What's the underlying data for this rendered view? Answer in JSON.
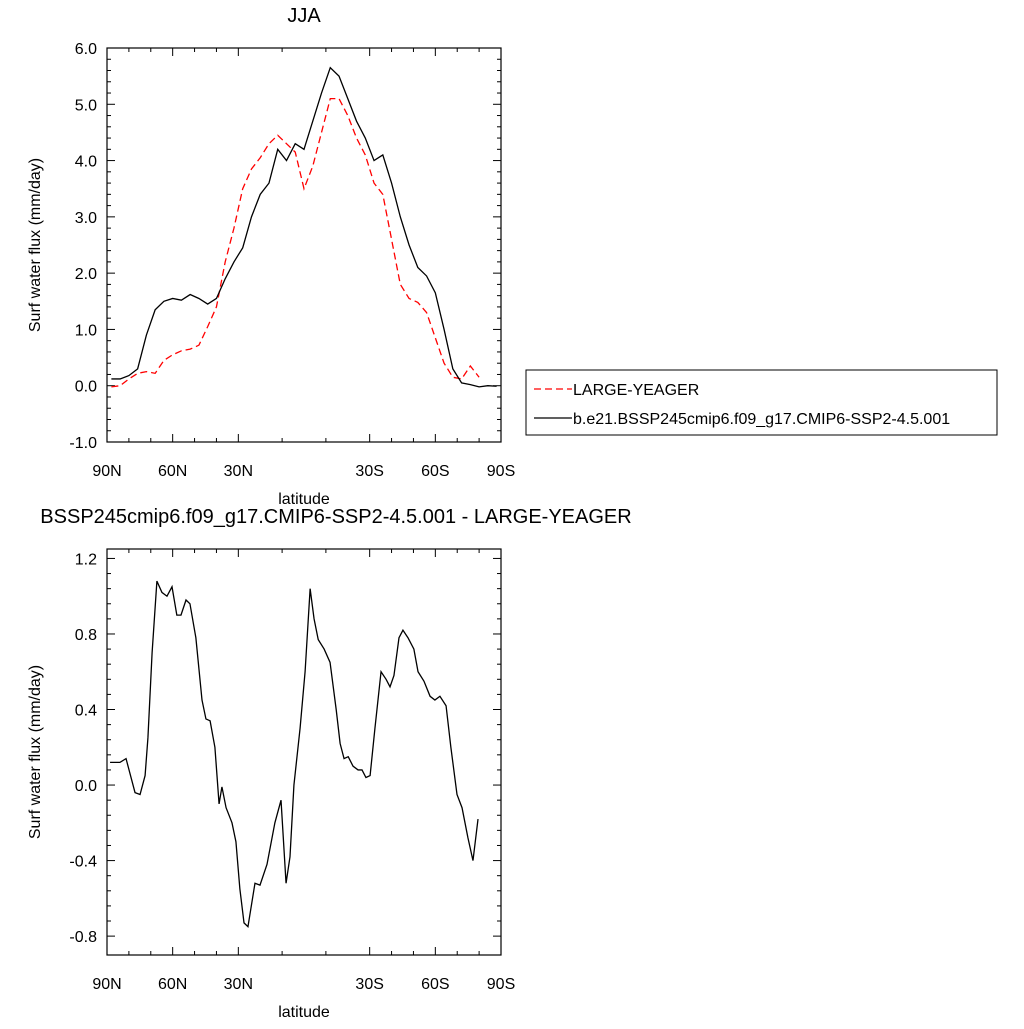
{
  "chart_data": [
    {
      "type": "line",
      "title": "JJA",
      "xlabel": "latitude",
      "ylabel": "Surf water flux (mm/day)",
      "x": [
        88,
        84,
        80,
        76,
        72,
        68,
        64,
        60,
        56,
        52,
        48,
        44,
        40,
        36,
        32,
        28,
        24,
        20,
        16,
        12,
        8,
        4,
        0,
        -4,
        -8,
        -12,
        -16,
        -20,
        -24,
        -28,
        -32,
        -36,
        -40,
        -44,
        -48,
        -52,
        -56,
        -60,
        -64,
        -68,
        -72,
        -76,
        -80,
        -84,
        -88
      ],
      "series": [
        {
          "name": "LARGE-YEAGER",
          "color": "#ff0000",
          "line_style": "dashed",
          "values": [
            -0.02,
            0.0,
            0.12,
            0.22,
            0.25,
            0.22,
            0.45,
            0.55,
            0.62,
            0.65,
            0.72,
            1.05,
            1.4,
            2.2,
            2.8,
            3.5,
            3.85,
            4.05,
            4.3,
            4.45,
            4.3,
            4.15,
            3.5,
            3.9,
            4.5,
            5.1,
            5.1,
            4.8,
            4.4,
            4.1,
            3.6,
            3.4,
            2.6,
            1.8,
            1.55,
            1.48,
            1.3,
            0.85,
            0.4,
            0.15,
            0.12,
            0.35,
            0.15,
            null,
            null
          ]
        },
        {
          "name": "b.e21.BSSP245cmip6.f09_g17.CMIP6-SSP2-4.5.001",
          "color": "#000000",
          "line_style": "solid",
          "values": [
            0.12,
            0.12,
            0.18,
            0.3,
            0.9,
            1.35,
            1.5,
            1.55,
            1.52,
            1.62,
            1.55,
            1.45,
            1.55,
            1.9,
            2.2,
            2.45,
            3.0,
            3.4,
            3.6,
            4.2,
            4.0,
            4.3,
            4.2,
            4.7,
            5.2,
            5.65,
            5.5,
            5.1,
            4.7,
            4.4,
            4.0,
            4.1,
            3.6,
            3.0,
            2.5,
            2.1,
            1.95,
            1.65,
            1.0,
            0.3,
            0.05,
            0.02,
            -0.02,
            0.0,
            -0.01
          ]
        }
      ],
      "xlim": [
        90,
        -90
      ],
      "xticks": [
        {
          "value": 90,
          "label": "90N"
        },
        {
          "value": 60,
          "label": "60N"
        },
        {
          "value": 30,
          "label": "30N"
        },
        {
          "value": -30,
          "label": "30S"
        },
        {
          "value": -60,
          "label": "60S"
        },
        {
          "value": -90,
          "label": "90S"
        }
      ],
      "ylim": [
        -1,
        6
      ],
      "yticks": [
        {
          "value": -1,
          "label": "-1.0"
        },
        {
          "value": 0,
          "label": "0.0"
        },
        {
          "value": 1,
          "label": "1.0"
        },
        {
          "value": 2,
          "label": "2.0"
        },
        {
          "value": 3,
          "label": "3.0"
        },
        {
          "value": 4,
          "label": "4.0"
        },
        {
          "value": 5,
          "label": "5.0"
        },
        {
          "value": 6,
          "label": "6.0"
        }
      ],
      "legend": "right"
    },
    {
      "type": "line",
      "title": "BSSP245cmip6.f09_g17.CMIP6-SSP2-4.5.001 - LARGE-YEAGER",
      "xlabel": "latitude",
      "ylabel": "Surf water flux (mm/day)",
      "x": [
        88.6,
        84.1,
        81.3,
        77.2,
        74.9,
        72.6,
        71.3,
        69.4,
        67.2,
        64.9,
        62.6,
        60.3,
        58.1,
        56.2,
        53.9,
        52.1,
        49.4,
        46.6,
        44.8,
        42.9,
        40.7,
        38.8,
        37.5,
        35.6,
        32.9,
        31.1,
        29.3,
        27.4,
        25.6,
        22.4,
        20.1,
        16.9,
        13.3,
        10.5,
        8.2,
        6.4,
        4.6,
        1.8,
        -0.5,
        -2.8,
        -4.6,
        -6.5,
        -9.2,
        -11.9,
        -14.7,
        -16.5,
        -18.3,
        -20.2,
        -22.4,
        -24.7,
        -26.5,
        -28.3,
        -30.2,
        -32.4,
        -35.2,
        -37.5,
        -39.3,
        -41.1,
        -43.4,
        -45.2,
        -47.5,
        -50.2,
        -52.1,
        -54.8,
        -57.6,
        -59.8,
        -62.1,
        -64.9,
        -67.1,
        -69.9,
        -72.2,
        -74.9,
        -77.2,
        -79.5
      ],
      "values": [
        0.12,
        0.12,
        0.14,
        -0.04,
        -0.05,
        0.05,
        0.25,
        0.7,
        1.08,
        1.02,
        1.0,
        1.05,
        0.9,
        0.9,
        0.98,
        0.96,
        0.78,
        0.45,
        0.35,
        0.34,
        0.2,
        -0.1,
        -0.01,
        -0.12,
        -0.2,
        -0.3,
        -0.55,
        -0.73,
        -0.75,
        -0.52,
        -0.53,
        -0.42,
        -0.2,
        -0.08,
        -0.52,
        -0.38,
        0.0,
        0.3,
        0.6,
        1.04,
        0.88,
        0.77,
        0.72,
        0.65,
        0.4,
        0.22,
        0.14,
        0.15,
        0.1,
        0.08,
        0.08,
        0.04,
        0.05,
        0.3,
        0.6,
        0.56,
        0.52,
        0.58,
        0.78,
        0.82,
        0.78,
        0.72,
        0.6,
        0.55,
        0.47,
        0.45,
        0.47,
        0.42,
        0.2,
        -0.05,
        -0.12,
        -0.28,
        -0.4,
        -0.18
      ],
      "color": "#000000",
      "xlim": [
        90,
        -90
      ],
      "xticks": [
        {
          "value": 90,
          "label": "90N"
        },
        {
          "value": 60,
          "label": "60N"
        },
        {
          "value": 30,
          "label": "30N"
        },
        {
          "value": -30,
          "label": "30S"
        },
        {
          "value": -60,
          "label": "60S"
        },
        {
          "value": -90,
          "label": "90S"
        }
      ],
      "ylim": [
        -0.9,
        1.25
      ],
      "yticks": [
        -0.8,
        -0.4,
        {
          "value": 0,
          "label": "0.0"
        },
        0.4,
        0.8,
        1.2
      ]
    }
  ]
}
